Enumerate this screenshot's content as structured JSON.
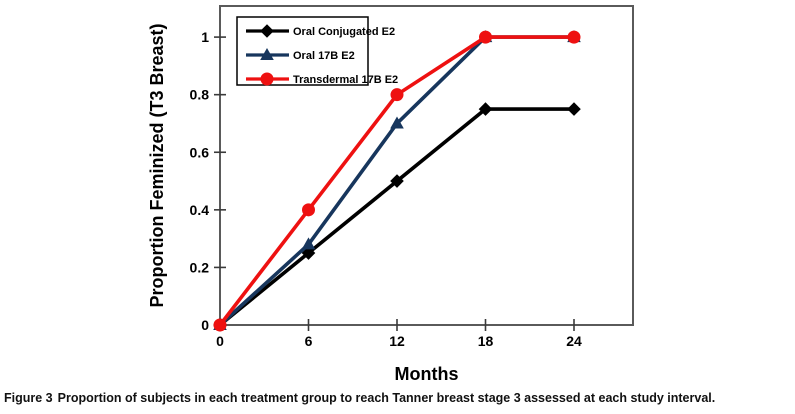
{
  "figure": {
    "caption_label": "Figure 3",
    "caption_text": "Proportion of subjects in each treatment group to reach Tanner breast stage 3 assessed at each study interval."
  },
  "chart_data": {
    "type": "line",
    "title": "",
    "xlabel": "Months",
    "ylabel": "Proportion Feminized (T3 Breast)",
    "x": [
      0,
      6,
      12,
      18,
      24
    ],
    "xticks": [
      0,
      6,
      12,
      18,
      24
    ],
    "yticks": [
      0,
      0.2,
      0.4,
      0.6,
      0.8,
      1
    ],
    "xlim": [
      0,
      28
    ],
    "ylim": [
      0,
      1.108
    ],
    "grid": false,
    "legend_position": "top-left",
    "series": [
      {
        "name": "Oral Conjugated E2",
        "color": "#000000",
        "marker": "diamond",
        "values": [
          0,
          0.25,
          0.5,
          0.75,
          0.75
        ]
      },
      {
        "name": "Oral 17B E2",
        "color": "#17365d",
        "marker": "triangle",
        "values": [
          0,
          0.28,
          0.7,
          1,
          1
        ]
      },
      {
        "name": "Transdermal 17B E2",
        "color": "#ee1111",
        "marker": "circle",
        "values": [
          0,
          0.4,
          0.8,
          1,
          1
        ]
      }
    ],
    "colors": {
      "axis_box": "#5a5a5a",
      "tick": "#3a3a3a",
      "text": "#000000"
    }
  }
}
